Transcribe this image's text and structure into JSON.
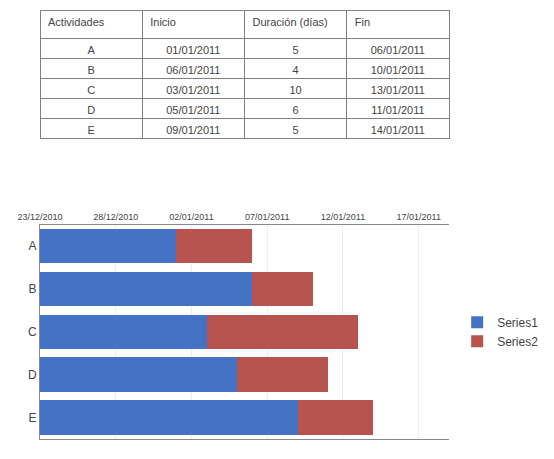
{
  "chart_data": [
    {
      "type": "table",
      "header": [
        "Actividades",
        "Inicio",
        "Duración (días)",
        "Fin"
      ],
      "rows": [
        [
          "A",
          "01/01/2011",
          "5",
          "06/01/2011"
        ],
        [
          "B",
          "06/01/2011",
          "4",
          "10/01/2011"
        ],
        [
          "C",
          "03/01/2011",
          "10",
          "13/01/2011"
        ],
        [
          "D",
          "05/01/2011",
          "6",
          "11/01/2011"
        ],
        [
          "E",
          "09/01/2011",
          "5",
          "14/01/2011"
        ]
      ]
    },
    {
      "type": "bar",
      "orientation": "horizontal",
      "stacked": true,
      "categories": [
        "A",
        "B",
        "C",
        "D",
        "E"
      ],
      "series": [
        {
          "name": "Series1",
          "color": "#4472C4",
          "values": [
            9,
            14,
            11,
            13,
            17
          ]
        },
        {
          "name": "Series2",
          "color": "#B85450",
          "values": [
            5,
            4,
            10,
            6,
            5
          ]
        }
      ],
      "xlim": [
        0,
        27
      ],
      "xticks": [
        {
          "value": 0,
          "label": "23/12/2010"
        },
        {
          "value": 5,
          "label": "28/12/2010"
        },
        {
          "value": 10,
          "label": "02/01/2011"
        },
        {
          "value": 15,
          "label": "07/01/2011"
        },
        {
          "value": 20,
          "label": "12/01/2011"
        },
        {
          "value": 25,
          "label": "17/01/2011"
        }
      ],
      "grid": true,
      "legend": "right"
    }
  ]
}
